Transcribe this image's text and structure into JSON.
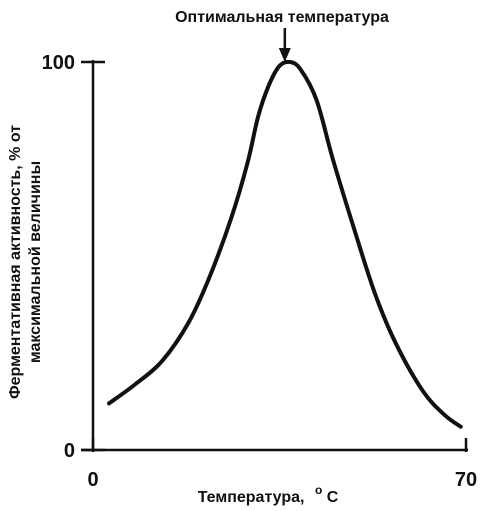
{
  "chart_data": {
    "type": "line",
    "title": "",
    "annotation": "Оптимальная температура",
    "xlabel": "Температура, °C",
    "xlabel_main": "Температура,",
    "xlabel_unit_sup": "o",
    "xlabel_unit_base": "C",
    "ylabel_line1": "Ферментативная активность, % от",
    "ylabel_line2": "максимальной величины",
    "xlim": [
      0,
      70
    ],
    "ylim": [
      0,
      100
    ],
    "x_ticks": [
      "0",
      "70"
    ],
    "y_ticks": [
      "0",
      "100"
    ],
    "series": [
      {
        "x": [
          3,
          8,
          13,
          18,
          22,
          26,
          29,
          31,
          33,
          35,
          37,
          39,
          42,
          45,
          49,
          53,
          57,
          62,
          66,
          69
        ],
        "y": [
          12,
          17,
          23,
          33,
          45,
          60,
          74,
          86,
          94,
          99,
          100,
          98,
          90,
          75,
          57,
          40,
          27,
          15,
          9,
          6
        ]
      }
    ],
    "optimum_x": 36,
    "grid": false,
    "color": "#111111"
  }
}
